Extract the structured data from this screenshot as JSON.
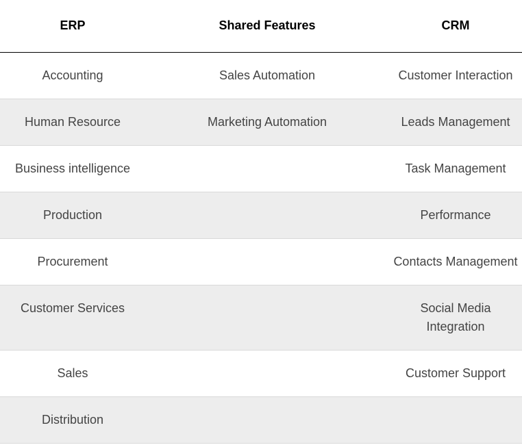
{
  "headers": {
    "erp": "ERP",
    "shared": "Shared Features",
    "crm": "CRM"
  },
  "rows": [
    {
      "erp": "Accounting",
      "shared": "Sales Automation",
      "crm": "Customer Interaction"
    },
    {
      "erp": "Human Resource",
      "shared": "Marketing Automation",
      "crm": "Leads Management"
    },
    {
      "erp": "Business intelligence",
      "shared": "",
      "crm": "Task Management"
    },
    {
      "erp": "Production",
      "shared": "",
      "crm": "Performance"
    },
    {
      "erp": "Procurement",
      "shared": "",
      "crm": "Contacts Management"
    },
    {
      "erp": "Customer Services",
      "shared": "",
      "crm": "Social Media Integration"
    },
    {
      "erp": "Sales",
      "shared": "",
      "crm": "Customer Support"
    },
    {
      "erp": "Distribution",
      "shared": "",
      "crm": ""
    }
  ],
  "colors": {
    "header_text": "#000000",
    "cell_text": "#444444",
    "row_alt_bg": "#ededed",
    "row_bg": "#ffffff",
    "header_rule": "#000000",
    "row_rule": "#d9d9d9"
  }
}
